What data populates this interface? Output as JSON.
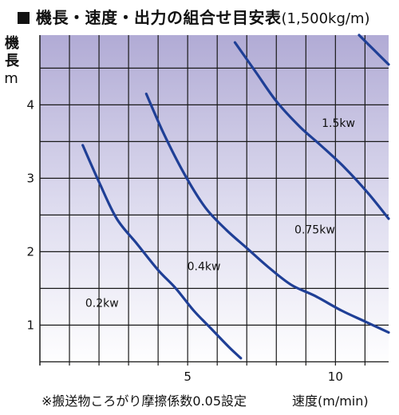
{
  "header": {
    "title_main": "機長・速度・出力の組合せ目安表",
    "title_sub": "(1,500kg/m)"
  },
  "footnote": "※搬送物ころがり摩擦係数0.05設定",
  "chart_data": {
    "type": "line",
    "title": "機長・速度・出力の組合せ目安表(1,500kg/m)",
    "xlabel": "速度(m/min)",
    "ylabel": "機長",
    "ylabel_unit": "m",
    "xlim": [
      0,
      11.8
    ],
    "ylim": [
      0.45,
      4.95
    ],
    "x_ticks": [
      5,
      10
    ],
    "y_ticks": [
      1,
      2,
      3,
      4
    ],
    "grid": true,
    "background": "gradient lavender (top) to white (bottom)",
    "line_color": "#1f3f96",
    "series": [
      {
        "name": "0.2kw",
        "label_at": [
          2.1,
          1.25
        ],
        "x": [
          1.45,
          2.0,
          2.6,
          3.3,
          4.0,
          4.6,
          5.2,
          5.8,
          6.4,
          6.8
        ],
        "y": [
          3.45,
          2.95,
          2.45,
          2.1,
          1.75,
          1.5,
          1.2,
          0.95,
          0.7,
          0.55
        ]
      },
      {
        "name": "0.4kw",
        "label_at": [
          5.55,
          1.75
        ],
        "x": [
          3.6,
          4.2,
          4.9,
          5.6,
          6.3,
          7.0,
          7.7,
          8.5,
          9.3,
          10.2,
          11.0,
          11.8
        ],
        "y": [
          4.15,
          3.6,
          3.05,
          2.6,
          2.3,
          2.05,
          1.8,
          1.55,
          1.4,
          1.2,
          1.05,
          0.9
        ]
      },
      {
        "name": "0.75kw",
        "label_at": [
          9.3,
          2.25
        ],
        "x": [
          6.6,
          7.3,
          8.0,
          8.8,
          9.5,
          10.3,
          11.1,
          11.8
        ],
        "y": [
          4.85,
          4.45,
          4.05,
          3.7,
          3.45,
          3.15,
          2.8,
          2.45
        ]
      },
      {
        "name": "1.5kw",
        "label_at": [
          10.1,
          3.7
        ],
        "x": [
          10.8,
          11.3,
          11.8
        ],
        "y": [
          4.95,
          4.75,
          4.55
        ]
      }
    ]
  }
}
